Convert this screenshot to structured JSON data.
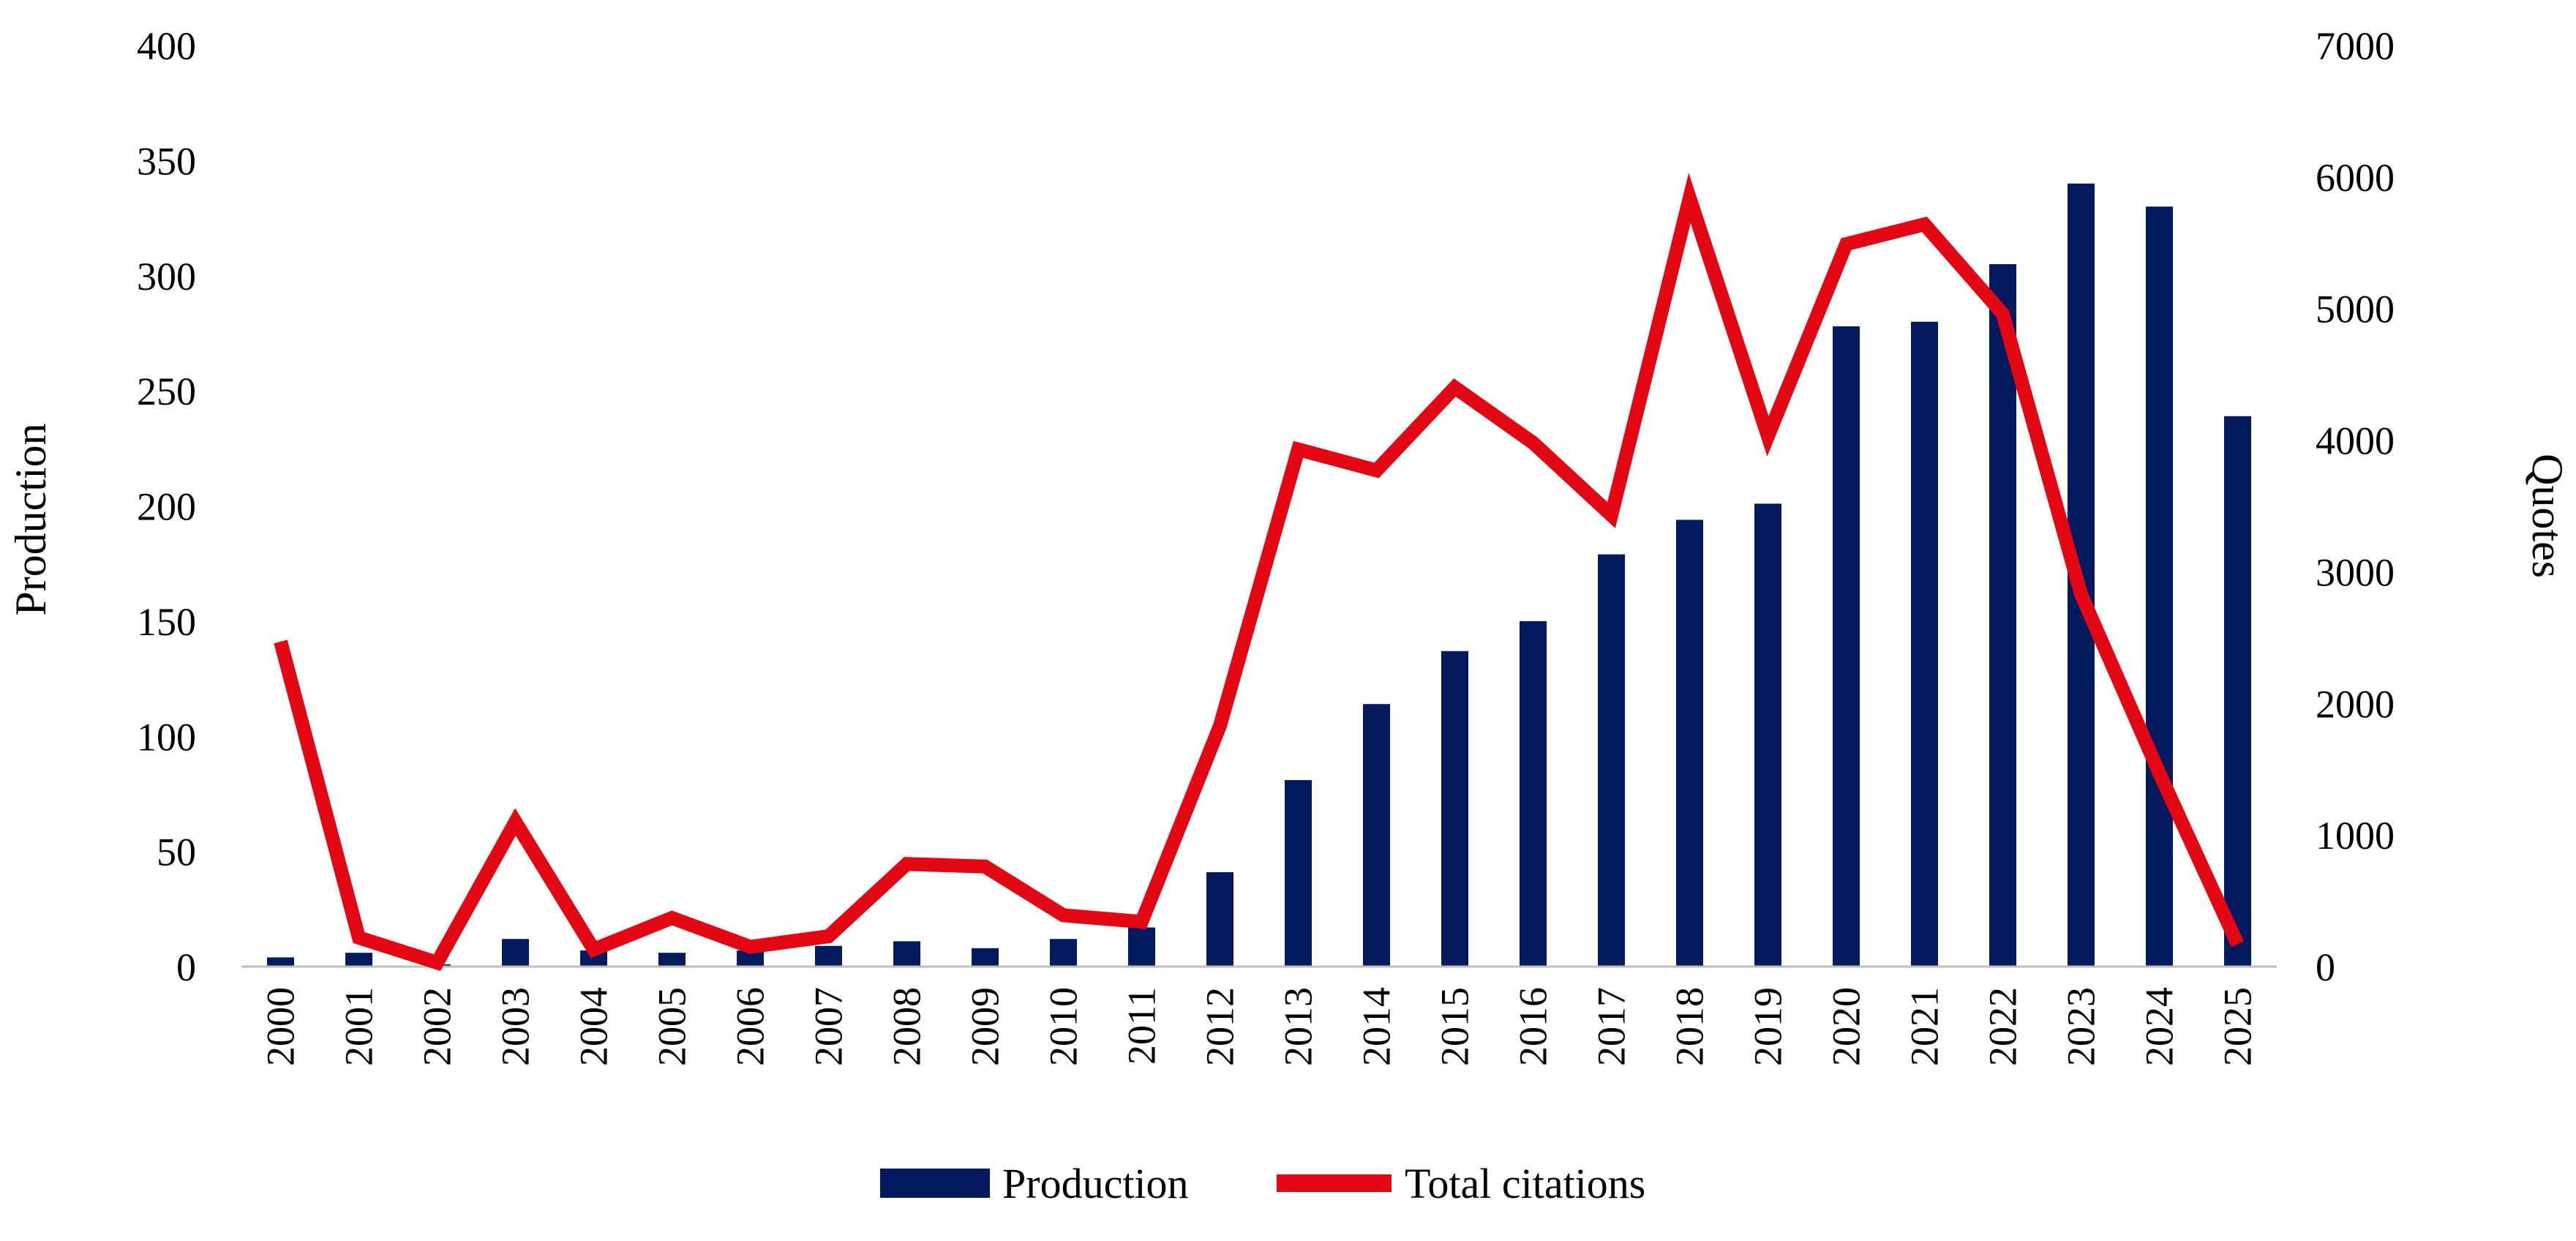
{
  "chart_data": {
    "type": "bar",
    "title": "",
    "categories": [
      "2000",
      "2001",
      "2002",
      "2003",
      "2004",
      "2005",
      "2006",
      "2007",
      "2008",
      "2009",
      "2010",
      "2011",
      "2012",
      "2013",
      "2014",
      "2015",
      "2016",
      "2017",
      "2018",
      "2019",
      "2020",
      "2021",
      "2022",
      "2023",
      "2024",
      "2025"
    ],
    "series": [
      {
        "name": "Production",
        "type": "bar",
        "axis": "left",
        "color": "#041A5E",
        "values": [
          4,
          6,
          1,
          12,
          7,
          6,
          7,
          9,
          11,
          8,
          12,
          17,
          41,
          81,
          114,
          137,
          150,
          179,
          194,
          201,
          278,
          280,
          305,
          340,
          330,
          239
        ]
      },
      {
        "name": "Total citations",
        "type": "line",
        "axis": "right",
        "color": "#E30613",
        "values": [
          2470,
          220,
          30,
          1100,
          130,
          370,
          150,
          230,
          780,
          760,
          390,
          340,
          1830,
          3930,
          3770,
          4400,
          3980,
          3430,
          5840,
          4030,
          5490,
          5640,
          4960,
          2830,
          1470,
          170
        ]
      }
    ],
    "xlabel": "",
    "ylabel": "Production",
    "y2label": "Quotes",
    "ylim": [
      0,
      400
    ],
    "yticks": [
      "0",
      "50",
      "100",
      "150",
      "200",
      "250",
      "300",
      "350",
      "400"
    ],
    "y2lim": [
      0,
      7000
    ],
    "y2ticks": [
      "0",
      "1000",
      "2000",
      "3000",
      "4000",
      "5000",
      "6000",
      "7000"
    ],
    "grid": false,
    "legend_position": "bottom-center"
  }
}
